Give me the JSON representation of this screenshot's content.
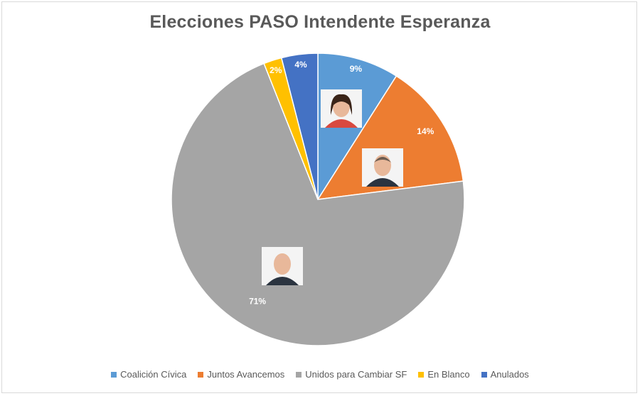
{
  "chart_data": {
    "type": "pie",
    "title": "Elecciones PASO Intendente Esperanza",
    "legend_position": "bottom",
    "slices": [
      {
        "name": "Coalición Cívica",
        "value": 9,
        "label": "9%",
        "color": "#5b9bd5",
        "portrait": "woman-portrait"
      },
      {
        "name": "Juntos Avancemos",
        "value": 14,
        "label": "14%",
        "color": "#ed7d31",
        "portrait": "man-portrait"
      },
      {
        "name": "Unidos para Cambiar SF",
        "value": 71,
        "label": "71%",
        "color": "#a5a5a5",
        "portrait": "man-portrait"
      },
      {
        "name": "En Blanco",
        "value": 2,
        "label": "2%",
        "color": "#ffc000"
      },
      {
        "name": "Anulados",
        "value": 4,
        "label": "4%",
        "color": "#4472c4"
      }
    ]
  }
}
